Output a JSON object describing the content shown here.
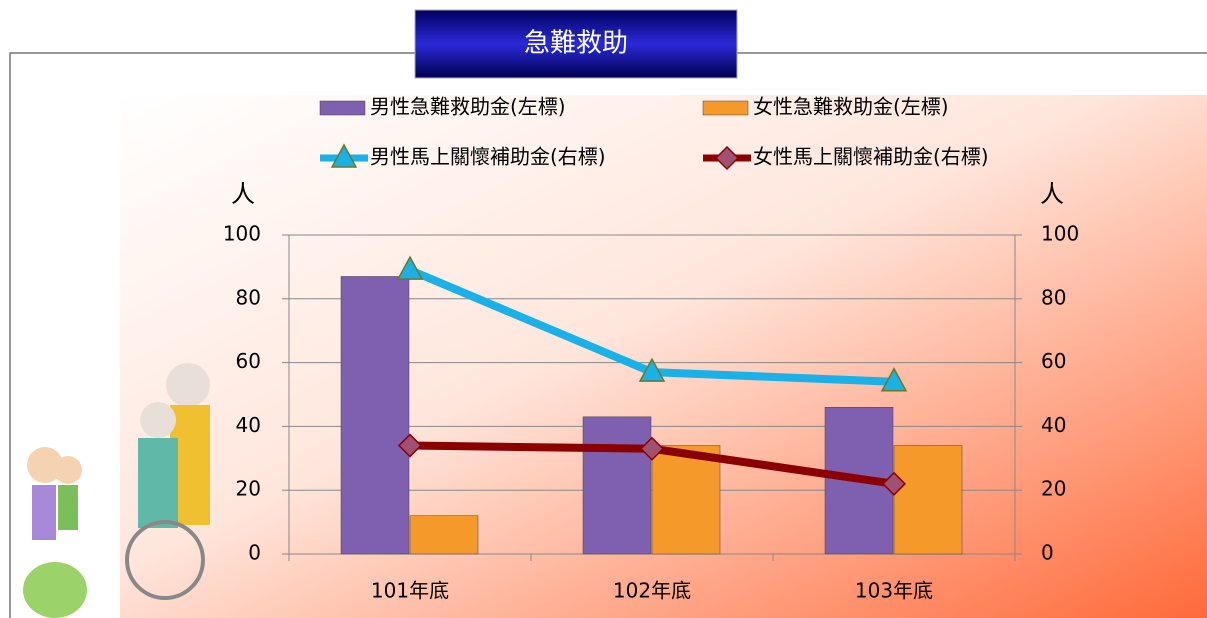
{
  "chart_data": {
    "type": "combo",
    "title": "急難救助",
    "categories": [
      "101年底",
      "102年底",
      "103年底"
    ],
    "y_label": "人",
    "y2_label": "人",
    "series": [
      {
        "name": "男性急難救助金(左標)",
        "type": "bar",
        "color": "#7f5fb0",
        "values": [
          87,
          43,
          46
        ]
      },
      {
        "name": "女性急難救助金(左標)",
        "type": "bar",
        "color": "#f59a2a",
        "values": [
          12,
          34,
          34
        ]
      },
      {
        "name": "男性馬上關懷補助金(右標)",
        "type": "line",
        "axis": "y2",
        "color": "#1ab0e8",
        "marker": "triangle",
        "values": [
          89,
          57,
          54
        ]
      },
      {
        "name": "女性馬上關懷補助金(右標)",
        "type": "line",
        "axis": "y2",
        "color": "#8b0000",
        "marker": "diamond",
        "values": [
          34,
          33,
          22
        ]
      }
    ],
    "ylim": [
      0,
      100
    ],
    "yticks": [
      0,
      20,
      40,
      60,
      80,
      100
    ],
    "y2lim": [
      0,
      100
    ],
    "y2ticks": [
      0,
      20,
      40,
      60,
      80,
      100
    ],
    "grid": true
  }
}
